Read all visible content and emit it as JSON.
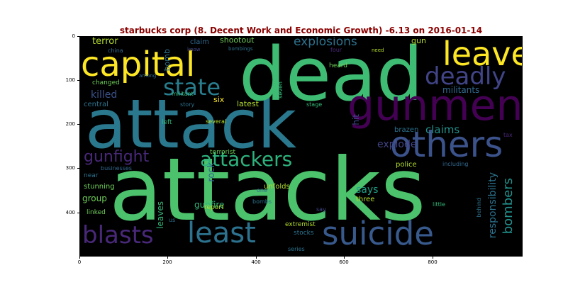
{
  "title": "starbucks corp (8. Decent Work and Economic Growth) -6.13 on 2016-01-14",
  "y_ticks": [
    "0",
    "100",
    "200",
    "300",
    "400"
  ],
  "x_ticks": [
    "0",
    "200",
    "400",
    "600",
    "800"
  ],
  "words": {
    "attacks": "attacks",
    "attack": "attack",
    "dead": "dead",
    "capital": "capital",
    "gunmen": "gunmen",
    "leave": "leave",
    "others": "others",
    "deadly": "deadly",
    "suicide": "suicide",
    "least": "least",
    "blasts": "blasts",
    "state": "state",
    "attackers": "attackers",
    "gunfight": "gunfight",
    "explosions": "explosions",
    "terror": "terror",
    "killed": "killed",
    "claims": "claims",
    "bombers": "bombers",
    "responsibility": "responsibility",
    "militants": "militants",
    "explode": "explode",
    "says": "says",
    "rock": "rock",
    "group": "group",
    "gunfire": "gunfire",
    "leaves": "leaves",
    "hit": "hit",
    "latest": "latest",
    "six": "six",
    "shootout": "shootout",
    "claim": "claim",
    "bomb": "bomb",
    "gun": "gun",
    "heard": "heard",
    "brazen": "brazen",
    "police": "police",
    "unfolds": "unfolds",
    "three": "three",
    "stunning": "stunning",
    "report": "report",
    "extremist": "extremist",
    "stocks": "stocks",
    "series": "series",
    "linked": "linked",
    "central": "central",
    "changed": "changed",
    "militant": "militant",
    "story": "story",
    "left": "left",
    "several": "several",
    "terrorist": "terrorist",
    "near": "near",
    "businesses": "businesses",
    "including": "including",
    "china": "china",
    "among": "among",
    "know": "know",
    "bombings": "bombings",
    "four": "four",
    "need": "need",
    "seven": "seven",
    "stage": "stage",
    "tax": "tax",
    "behind": "behind",
    "little": "little",
    "say": "say",
    "one": "one",
    "bombs": "bombs",
    "us": "us"
  }
}
